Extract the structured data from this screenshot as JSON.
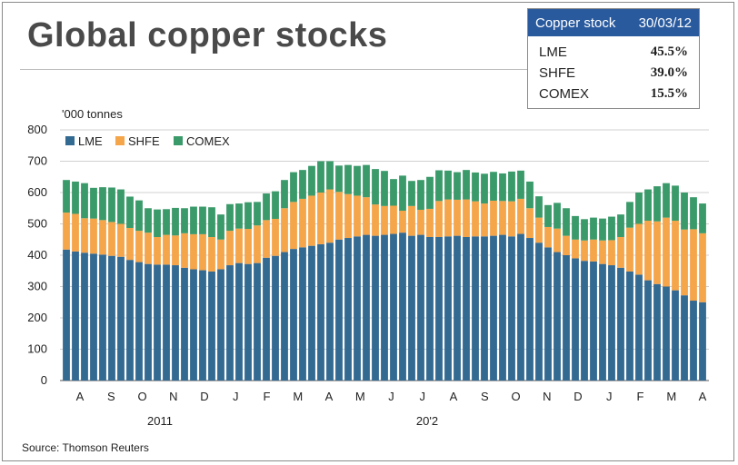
{
  "title": "Global copper stocks",
  "infobox": {
    "header_label": "Copper stock",
    "header_date": "30/03/12",
    "rows": [
      {
        "label": "LME",
        "value": "45.5%"
      },
      {
        "label": "SHFE",
        "value": "39.0%"
      },
      {
        "label": "COMEX",
        "value": "15.5%"
      }
    ]
  },
  "source": "Source: Thomson Reuters",
  "colors": {
    "LME": "#336a92",
    "SHFE": "#f5a54a",
    "COMEX": "#3a9a6a"
  },
  "chart_data": {
    "type": "bar",
    "stacked": true,
    "ylabel": "'000 tonnes",
    "ylim": [
      0,
      800
    ],
    "yticks": [
      0,
      100,
      200,
      300,
      400,
      500,
      600,
      700,
      800
    ],
    "legend": {
      "position": "top-left",
      "entries": [
        "LME",
        "SHFE",
        "COMEX"
      ]
    },
    "month_labels": [
      "A",
      "S",
      "O",
      "N",
      "D",
      "J",
      "F",
      "M",
      "A",
      "M",
      "J",
      "J",
      "A",
      "S",
      "O",
      "N",
      "D",
      "J",
      "F",
      "M",
      "A"
    ],
    "year_labels": [
      "2011",
      "20'2"
    ],
    "series": [
      {
        "name": "LME",
        "values": [
          418,
          412,
          408,
          405,
          402,
          398,
          395,
          385,
          378,
          372,
          370,
          370,
          368,
          360,
          355,
          352,
          348,
          355,
          368,
          375,
          372,
          375,
          392,
          398,
          410,
          420,
          425,
          430,
          435,
          440,
          450,
          455,
          460,
          465,
          462,
          465,
          468,
          472,
          462,
          465,
          458,
          458,
          460,
          462,
          458,
          460,
          460,
          462,
          465,
          460,
          468,
          455,
          440,
          425,
          410,
          400,
          390,
          382,
          380,
          372,
          368,
          360,
          348,
          338,
          320,
          308,
          300,
          288,
          272,
          255,
          250
        ]
      },
      {
        "name": "SHFE",
        "values": [
          118,
          120,
          110,
          112,
          110,
          108,
          105,
          102,
          100,
          100,
          88,
          95,
          95,
          110,
          112,
          115,
          110,
          95,
          110,
          110,
          112,
          120,
          120,
          118,
          140,
          150,
          155,
          160,
          165,
          170,
          152,
          140,
          130,
          120,
          100,
          92,
          90,
          70,
          95,
          80,
          90,
          115,
          118,
          115,
          120,
          112,
          105,
          112,
          108,
          112,
          112,
          95,
          80,
          65,
          75,
          62,
          60,
          65,
          70,
          75,
          80,
          98,
          140,
          162,
          190,
          200,
          220,
          222,
          210,
          228,
          220
        ]
      },
      {
        "name": "COMEX",
        "values": [
          104,
          103,
          112,
          98,
          105,
          110,
          110,
          100,
          97,
          78,
          88,
          82,
          88,
          80,
          88,
          88,
          95,
          80,
          85,
          80,
          85,
          75,
          85,
          88,
          90,
          95,
          92,
          95,
          100,
          90,
          84,
          93,
          95,
          103,
          113,
          112,
          85,
          112,
          80,
          95,
          102,
          98,
          92,
          88,
          94,
          92,
          95,
          92,
          88,
          95,
          90,
          85,
          68,
          70,
          82,
          88,
          75,
          68,
          70,
          70,
          75,
          72,
          82,
          100,
          100,
          112,
          110,
          112,
          118,
          102,
          95
        ]
      }
    ]
  }
}
